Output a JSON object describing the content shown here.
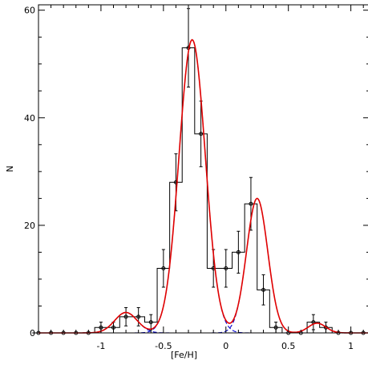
{
  "chart_data": {
    "type": "histogram",
    "title": "",
    "xlabel": "[Fe/H]",
    "ylabel": "N",
    "xlim": [
      -1.5,
      1.15
    ],
    "ylim": [
      0,
      61
    ],
    "x_ticks": [
      -1,
      -0.5,
      0,
      0.5,
      1
    ],
    "x_tick_labels": [
      "-1",
      "-0.5",
      "0",
      "0.5",
      "1"
    ],
    "y_ticks": [
      0,
      20,
      40,
      60
    ],
    "y_tick_labels": [
      "0",
      "20",
      "40",
      "60"
    ],
    "grid": false,
    "legend": "none",
    "histogram": {
      "bin_width": 0.1,
      "bin_centers": [
        -1.5,
        -1.4,
        -1.3,
        -1.2,
        -1.1,
        -1.0,
        -0.9,
        -0.8,
        -0.7,
        -0.6,
        -0.5,
        -0.4,
        -0.3,
        -0.2,
        -0.1,
        0.0,
        0.1,
        0.2,
        0.3,
        0.4,
        0.5,
        0.6,
        0.7,
        0.8,
        0.9,
        1.0,
        1.1
      ],
      "counts": [
        0,
        0,
        0,
        0,
        0,
        1,
        1,
        3,
        3,
        2,
        12,
        28,
        53,
        37,
        12,
        12,
        15,
        24,
        8,
        1,
        0,
        0,
        2,
        1,
        0,
        0,
        0
      ],
      "errors": [
        0,
        0,
        0,
        0,
        0,
        1,
        1,
        1.7,
        1.7,
        1.4,
        3.5,
        5.3,
        7.3,
        6.1,
        3.5,
        3.5,
        3.9,
        4.9,
        2.8,
        1,
        0,
        0,
        1.4,
        1,
        0,
        0,
        0
      ],
      "color": "#000000"
    },
    "components": [
      {
        "amplitude": 3.8,
        "mean": -0.8,
        "sigma": 0.09
      },
      {
        "amplitude": 54.5,
        "mean": -0.27,
        "sigma": 0.105
      },
      {
        "amplitude": 25.0,
        "mean": 0.25,
        "sigma": 0.085
      },
      {
        "amplitude": 1.8,
        "mean": 0.73,
        "sigma": 0.07
      }
    ],
    "components_style": {
      "color": "#0000cc",
      "dash": "dashed"
    },
    "total_fit": {
      "color": "#e00000"
    }
  }
}
